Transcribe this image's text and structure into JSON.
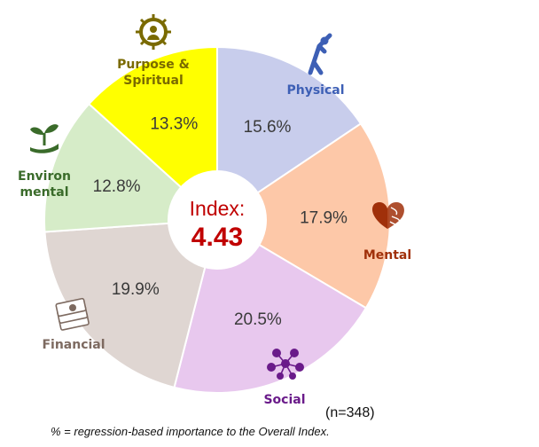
{
  "chart_data": {
    "type": "pie",
    "center": {
      "title": "Index:",
      "value": "4.43"
    },
    "slices": [
      {
        "name": "Physical",
        "value": 15.6,
        "label": "15.6%",
        "color": "#c8cdec",
        "label_color": "#3d5fb5",
        "icon": "stretching-person-icon"
      },
      {
        "name": "Mental",
        "value": 17.9,
        "label": "17.9%",
        "color": "#fdc8a8",
        "label_color": "#a0300a",
        "icon": "brain-heart-icon"
      },
      {
        "name": "Social",
        "value": 20.5,
        "label": "20.5%",
        "color": "#e8c8ee",
        "label_color": "#6a1b8a",
        "icon": "people-network-icon"
      },
      {
        "name": "Financial",
        "value": 19.9,
        "label": "19.9%",
        "color": "#dfd6d2",
        "label_color": "#7d6a60",
        "icon": "money-stack-icon"
      },
      {
        "name": "Environmental",
        "display_lines": [
          "Environ",
          "mental"
        ],
        "value": 12.8,
        "label": "12.8%",
        "color": "#d6ecc8",
        "label_color": "#3a6b2a",
        "icon": "sprout-hand-icon"
      },
      {
        "name": "Purpose & Spiritual",
        "display_lines": [
          "Purpose &",
          "Spiritual"
        ],
        "value": 13.3,
        "label": "13.3%",
        "color": "#ffff00",
        "label_color": "#7a6a00",
        "icon": "dharma-wheel-icon"
      }
    ]
  },
  "sample_size": "(n=348)",
  "footnote": "% = regression-based importance to the Overall Index."
}
